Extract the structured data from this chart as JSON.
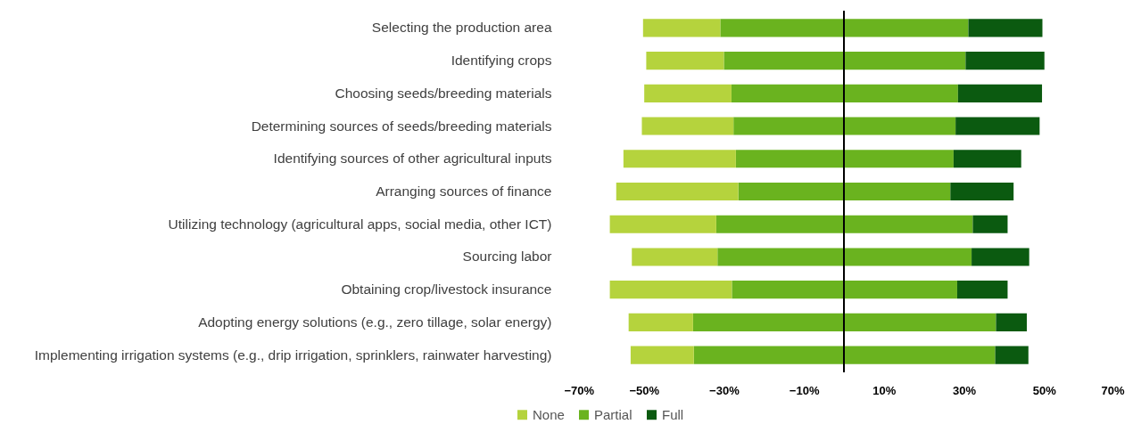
{
  "chart_data": {
    "type": "bar",
    "orientation": "horizontal",
    "stacked": true,
    "categories": [
      "Selecting the production area",
      "Identifying crops",
      "Choosing seeds/breeding materials",
      "Determining sources of seeds/breeding materials",
      "Identifying sources of other agricultural inputs",
      "Arranging sources of finance",
      "Utilizing technology (agricultural apps, social media, other ICT)",
      "Sourcing labor",
      "Obtaining crop/livestock insurance",
      "Adopting energy solutions (e.g., zero tillage, solar energy)",
      "Implementing irrigation systems (e.g., drip irrigation, sprinklers, rainwater harvesting)"
    ],
    "series": [
      {
        "name": "Partial",
        "color": "#6ab31f",
        "values": [
          -30.9,
          -30.0,
          -28.1,
          -27.6,
          -27.0,
          -26.4,
          -31.9,
          -31.6,
          -28.0,
          -37.7,
          -37.5
        ]
      },
      {
        "name": "None",
        "color": "#b5d33d",
        "values": [
          -19.3,
          -19.4,
          -21.8,
          -22.9,
          -28.1,
          -30.5,
          -26.6,
          -21.4,
          -30.5,
          -16.1,
          -15.8
        ]
      },
      {
        "color": "#6ab31f",
        "values": [
          31.1,
          30.4,
          28.5,
          27.9,
          27.4,
          26.6,
          32.2,
          31.9,
          28.3,
          38.0,
          37.8
        ]
      },
      {
        "name": "Full",
        "color": "#0b5a10",
        "values": [
          18.5,
          19.7,
          21.0,
          21.0,
          16.9,
          15.8,
          8.7,
          14.4,
          12.6,
          7.7,
          8.3
        ]
      }
    ],
    "xlim": [
      -70,
      70
    ],
    "xticks": [
      {
        "value": -70,
        "label": "−70%"
      },
      {
        "value": -50,
        "label": "−50%"
      },
      {
        "value": -30,
        "label": "−30%"
      },
      {
        "value": -10,
        "label": "−10%"
      },
      {
        "value": 10,
        "label": "10%"
      },
      {
        "value": 30,
        "label": "30%"
      },
      {
        "value": 50,
        "label": "50%"
      },
      {
        "value": 70,
        "label": "70%"
      }
    ],
    "ref_lines": [
      {
        "axis": "x",
        "value": 0,
        "color": "#000000"
      }
    ],
    "legend": "bottom"
  }
}
